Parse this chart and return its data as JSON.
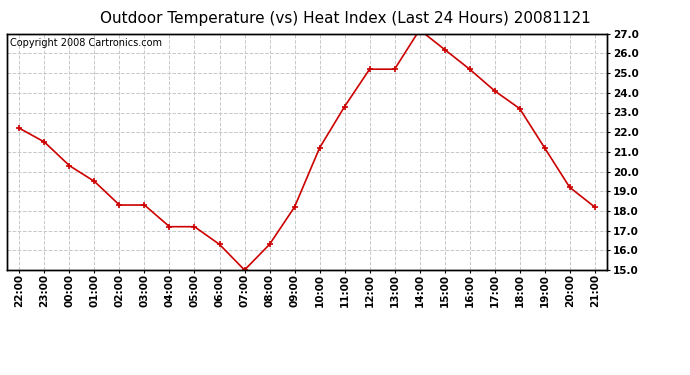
{
  "title": "Outdoor Temperature (vs) Heat Index (Last 24 Hours) 20081121",
  "copyright_text": "Copyright 2008 Cartronics.com",
  "x_labels": [
    "22:00",
    "23:00",
    "00:00",
    "01:00",
    "02:00",
    "03:00",
    "04:00",
    "05:00",
    "06:00",
    "07:00",
    "08:00",
    "09:00",
    "10:00",
    "11:00",
    "12:00",
    "13:00",
    "14:00",
    "15:00",
    "16:00",
    "17:00",
    "18:00",
    "19:00",
    "20:00",
    "21:00"
  ],
  "y_values": [
    22.2,
    21.5,
    20.3,
    19.5,
    18.3,
    18.3,
    17.2,
    17.2,
    16.3,
    15.0,
    16.3,
    18.2,
    21.2,
    23.3,
    25.2,
    25.2,
    27.2,
    26.2,
    25.2,
    24.1,
    23.2,
    21.2,
    19.2,
    18.2
  ],
  "ylim": [
    15.0,
    27.0
  ],
  "yticks": [
    15.0,
    16.0,
    17.0,
    18.0,
    19.0,
    20.0,
    21.0,
    22.0,
    23.0,
    24.0,
    25.0,
    26.0,
    27.0
  ],
  "line_color": "#cc0000",
  "marker": "+",
  "marker_size": 5,
  "marker_linewidth": 1.2,
  "line_width": 1.2,
  "bg_color": "#ffffff",
  "plot_bg_color": "#ffffff",
  "grid_color": "#c8c8c8",
  "grid_style": "--",
  "title_fontsize": 11,
  "axis_fontsize": 7.5,
  "copyright_fontsize": 7
}
